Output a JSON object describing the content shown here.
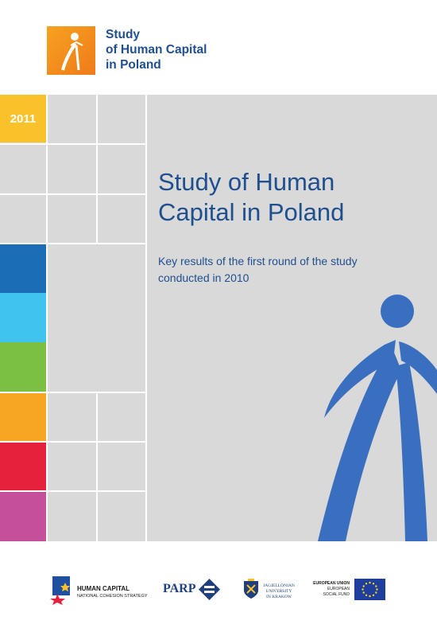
{
  "header": {
    "logo_lines": [
      "Study",
      "of Human Capital",
      "in Poland"
    ]
  },
  "cover": {
    "year": "2011",
    "title_line1": "Study of Human",
    "title_line2": "Capital in Poland",
    "subtitle_line1": "Key results of the first round of the study",
    "subtitle_line2": "conducted in 2010"
  },
  "colors": {
    "brand_blue": "#1f4f8f",
    "figure_blue": "#3a6fbf",
    "year_yellow": "#f9c22a",
    "dark_blue": "#1b6eb5",
    "light_blue": "#40c3ef",
    "green": "#7bbf43",
    "orange": "#f6a623",
    "red": "#e5213b",
    "magenta": "#c54f9a",
    "grey": "#d9d9d9"
  },
  "footer": {
    "hc_title": "HUMAN CAPITAL",
    "hc_sub": "NATIONAL COHESION STRATEGY",
    "parp": "PARP",
    "uj_line1": "JAGIELLONIAN",
    "uj_line2": "UNIVERSITY",
    "uj_line3": "IN KRAKOW",
    "eu_line1": "EUROPEAN UNION",
    "eu_line2": "EUROPEAN",
    "eu_line3": "SOCIAL FUND"
  }
}
